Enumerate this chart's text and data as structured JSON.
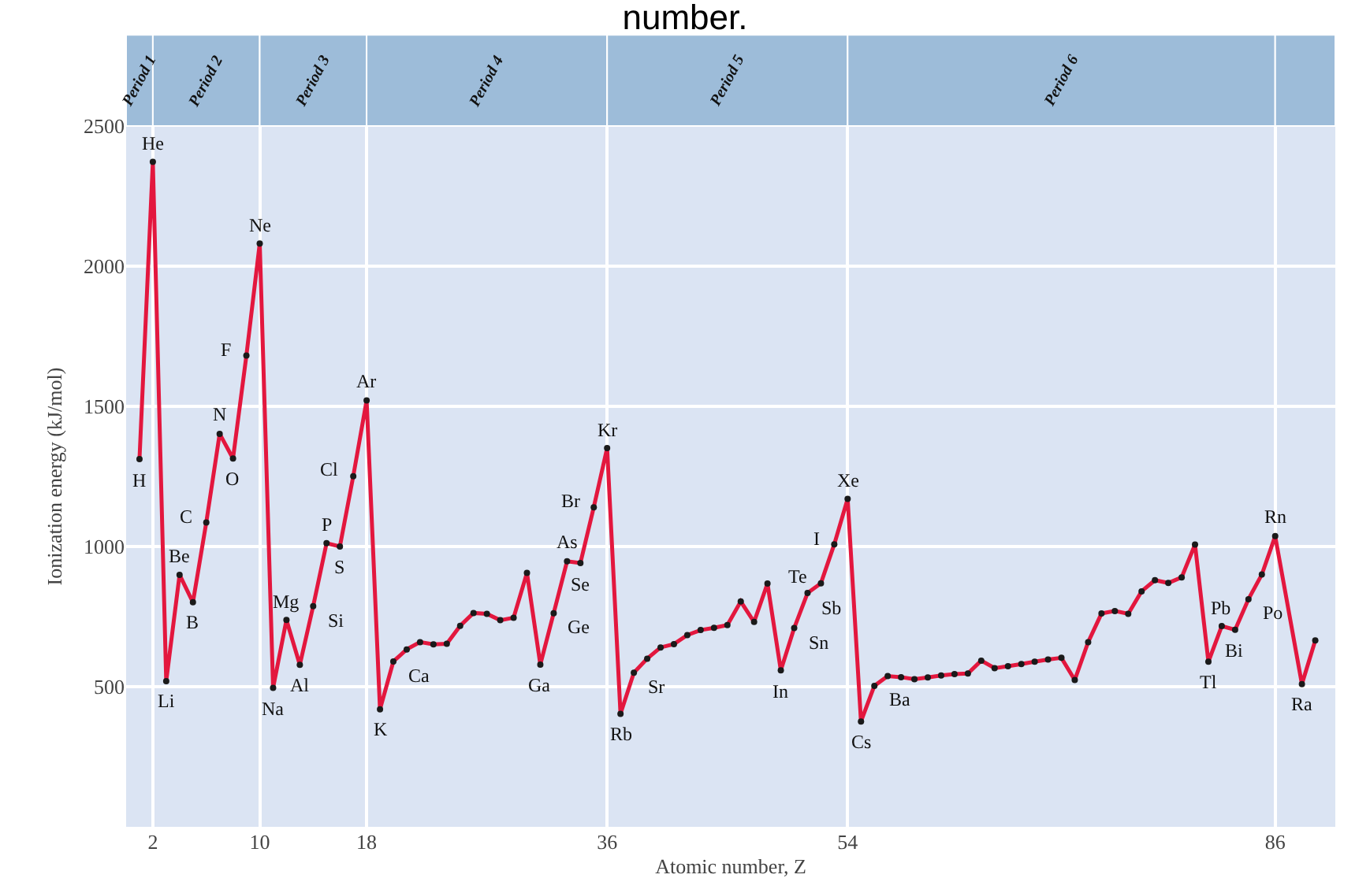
{
  "chart_data": {
    "type": "line",
    "title": "number.",
    "xlabel": "Atomic number, Z",
    "ylabel": "Ionization energy (kJ/mol)",
    "x": [
      1,
      2,
      3,
      4,
      5,
      6,
      7,
      8,
      9,
      10,
      11,
      12,
      13,
      14,
      15,
      16,
      17,
      18,
      19,
      20,
      21,
      22,
      23,
      24,
      25,
      26,
      27,
      28,
      29,
      30,
      31,
      32,
      33,
      34,
      35,
      36,
      37,
      38,
      39,
      40,
      41,
      42,
      43,
      44,
      45,
      46,
      47,
      48,
      49,
      50,
      51,
      52,
      53,
      54,
      55,
      56,
      57,
      58,
      59,
      60,
      61,
      62,
      63,
      64,
      65,
      66,
      67,
      68,
      69,
      70,
      71,
      72,
      73,
      74,
      75,
      76,
      77,
      78,
      79,
      80,
      81,
      82,
      83,
      84,
      85,
      86,
      88,
      89
    ],
    "series": [
      {
        "color": "#e3173e",
        "values": [
          1312,
          2372,
          520,
          899,
          801,
          1086,
          1402,
          1314,
          1681,
          2081,
          496,
          738,
          578,
          787,
          1012,
          1000,
          1251,
          1521,
          419,
          590,
          633,
          659,
          651,
          653,
          717,
          763,
          760,
          737,
          746,
          906,
          579,
          762,
          947,
          941,
          1140,
          1351,
          403,
          550,
          600,
          640,
          652,
          684,
          702,
          710,
          720,
          804,
          731,
          868,
          558,
          709,
          834,
          869,
          1008,
          1170,
          376,
          503,
          538,
          534,
          527,
          533,
          540,
          545,
          547,
          593,
          566,
          573,
          581,
          589,
          597,
          603,
          524,
          659,
          761,
          770,
          760,
          840,
          880,
          870,
          890,
          1007,
          589,
          716,
          703,
          812,
          900,
          1037,
          509,
          665
        ]
      }
    ],
    "xlim": [
      0,
      90.5
    ],
    "ylim": [
      0,
      2500
    ],
    "xticks": [
      2,
      10,
      18,
      36,
      54,
      86
    ],
    "yticks": [
      500,
      1000,
      1500,
      2000,
      2500
    ],
    "grid": true,
    "marker": "circle",
    "line_style": "solid",
    "bands": [
      {
        "axis": "x",
        "from": 0,
        "to": 2,
        "label": "Period 1"
      },
      {
        "axis": "x",
        "from": 2,
        "to": 10,
        "label": "Period 2"
      },
      {
        "axis": "x",
        "from": 10,
        "to": 18,
        "label": "Period 3"
      },
      {
        "axis": "x",
        "from": 18,
        "to": 36,
        "label": "Period 4"
      },
      {
        "axis": "x",
        "from": 36,
        "to": 54,
        "label": "Period 5"
      },
      {
        "axis": "x",
        "from": 54,
        "to": 86,
        "label": "Period 6"
      },
      {
        "axis": "x",
        "from": 86,
        "to": 90.5
      }
    ],
    "annotations": [
      {
        "text": "H",
        "x": 1,
        "y": 1312
      },
      {
        "text": "He",
        "x": 2,
        "y": 2372
      },
      {
        "text": "Li",
        "x": 3,
        "y": 520
      },
      {
        "text": "Be",
        "x": 4,
        "y": 899
      },
      {
        "text": "B",
        "x": 5,
        "y": 801
      },
      {
        "text": "C",
        "x": 6,
        "y": 1086
      },
      {
        "text": "N",
        "x": 7,
        "y": 1402
      },
      {
        "text": "O",
        "x": 8,
        "y": 1314
      },
      {
        "text": "F",
        "x": 9,
        "y": 1681
      },
      {
        "text": "Ne",
        "x": 10,
        "y": 2081
      },
      {
        "text": "Na",
        "x": 11,
        "y": 496
      },
      {
        "text": "Mg",
        "x": 12,
        "y": 738
      },
      {
        "text": "Al",
        "x": 13,
        "y": 578
      },
      {
        "text": "Si",
        "x": 14,
        "y": 787
      },
      {
        "text": "P",
        "x": 15,
        "y": 1012
      },
      {
        "text": "S",
        "x": 16,
        "y": 1000
      },
      {
        "text": "Cl",
        "x": 17,
        "y": 1251
      },
      {
        "text": "Ar",
        "x": 18,
        "y": 1521
      },
      {
        "text": "K",
        "x": 19,
        "y": 419
      },
      {
        "text": "Ca",
        "x": 20,
        "y": 590
      },
      {
        "text": "Ga",
        "x": 31,
        "y": 579
      },
      {
        "text": "Ge",
        "x": 32,
        "y": 762
      },
      {
        "text": "As",
        "x": 33,
        "y": 947
      },
      {
        "text": "Se",
        "x": 34,
        "y": 941
      },
      {
        "text": "Br",
        "x": 35,
        "y": 1140
      },
      {
        "text": "Kr",
        "x": 36,
        "y": 1351
      },
      {
        "text": "Rb",
        "x": 37,
        "y": 403
      },
      {
        "text": "Sr",
        "x": 38,
        "y": 550
      },
      {
        "text": "In",
        "x": 49,
        "y": 558
      },
      {
        "text": "Sn",
        "x": 50,
        "y": 709
      },
      {
        "text": "Sb",
        "x": 51,
        "y": 834
      },
      {
        "text": "Te",
        "x": 52,
        "y": 869
      },
      {
        "text": "I",
        "x": 53,
        "y": 1008
      },
      {
        "text": "Xe",
        "x": 54,
        "y": 1170
      },
      {
        "text": "Cs",
        "x": 55,
        "y": 376
      },
      {
        "text": "Ba",
        "x": 56,
        "y": 503
      },
      {
        "text": "Tl",
        "x": 81,
        "y": 589
      },
      {
        "text": "Pb",
        "x": 82,
        "y": 716
      },
      {
        "text": "Bi",
        "x": 83,
        "y": 703
      },
      {
        "text": "Po",
        "x": 84,
        "y": 812
      },
      {
        "text": "Rn",
        "x": 86,
        "y": 1037
      },
      {
        "text": "Ra",
        "x": 88,
        "y": 509
      }
    ]
  }
}
